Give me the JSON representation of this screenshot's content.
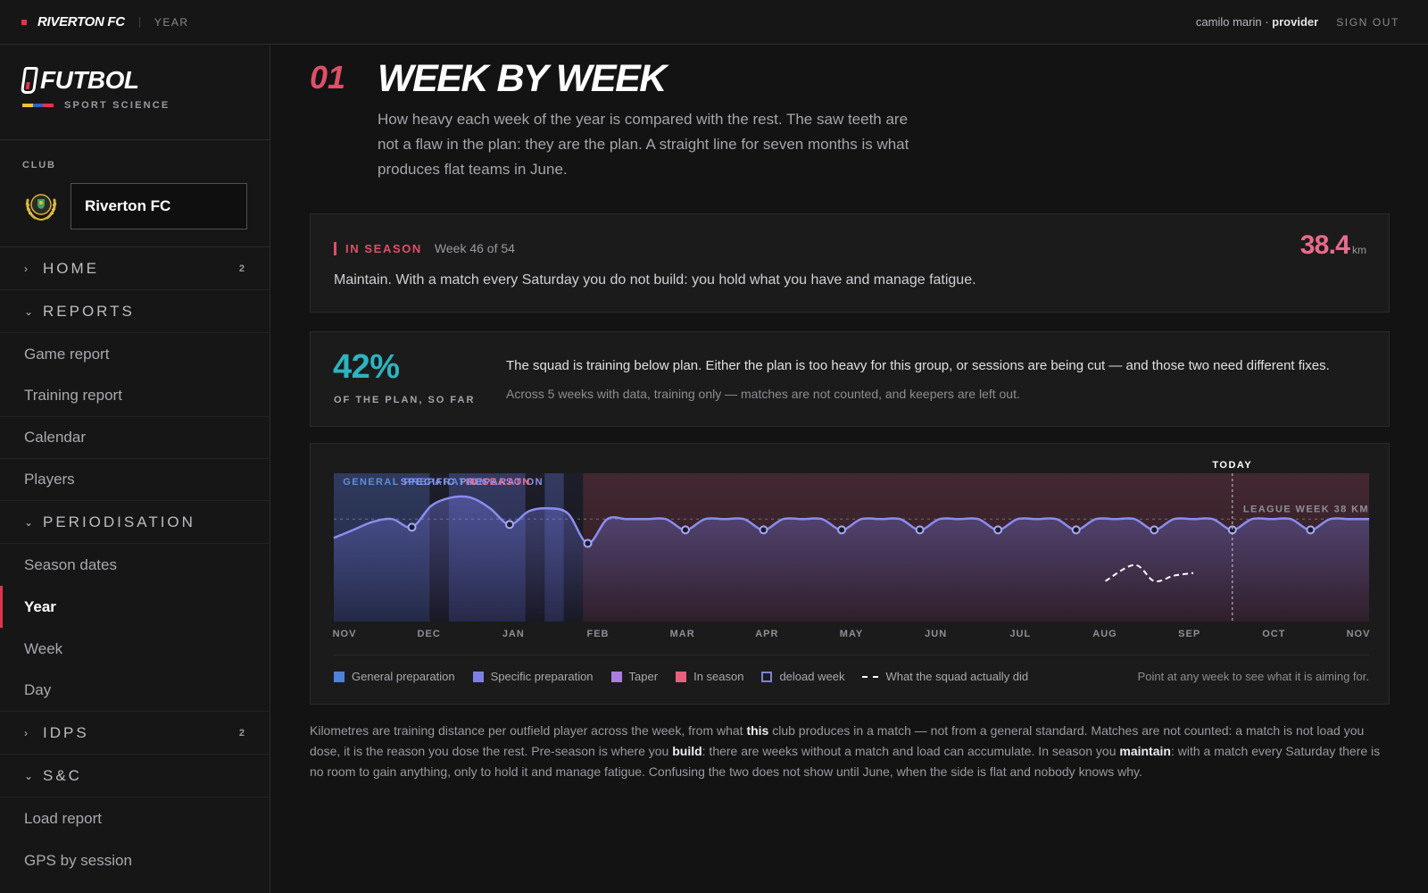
{
  "topbar": {
    "brand": "RIVERTON FC",
    "crumb": "YEAR",
    "user_name": "camilo marin ·",
    "user_role": "provider",
    "signout": "SIGN OUT"
  },
  "sidebar": {
    "logo_text": "FUTBOL",
    "logo_sub": "SPORT SCIENCE",
    "club_label": "CLUB",
    "club_value": "Riverton FC",
    "sections": {
      "home": {
        "label": "HOME",
        "count": "2"
      },
      "reports": {
        "label": "REPORTS",
        "items": [
          "Game report",
          "Training report",
          "Calendar",
          "Players"
        ]
      },
      "periodisation": {
        "label": "PERIODISATION",
        "items": [
          "Season dates",
          "Year",
          "Week",
          "Day"
        ]
      },
      "idps": {
        "label": "IDPS",
        "count": "2"
      },
      "sc": {
        "label": "S&C",
        "items": [
          "Load report",
          "GPS by session"
        ]
      }
    }
  },
  "main": {
    "section_number": "01",
    "title": "WEEK BY WEEK",
    "intro": "How heavy each week of the year is compared with the rest. The saw teeth are not a flaw in the plan: they are the plan. A straight line for seven months is what produces flat teams in June.",
    "season": {
      "tag": "IN SEASON",
      "week": "Week 46 of 54",
      "description": "Maintain. With a match every Saturday you do not build: you hold what you have and manage fatigue.",
      "km_value": "38.4",
      "km_unit": "km"
    },
    "plan": {
      "percent": "42%",
      "sub": "OF THE PLAN, SO FAR",
      "headline": "The squad is training below plan. Either the plan is too heavy for this group, or sessions are being cut — and those two need different fixes.",
      "note": "Across 5 weeks with data, training only — matches are not counted, and keepers are left out."
    },
    "legend": {
      "general": "General preparation",
      "specific": "Specific preparation",
      "taper": "Taper",
      "in_season": "In season",
      "deload": "deload week",
      "actual": "What the squad actually did",
      "hint": "Point at any week to see what it is aiming for."
    },
    "footnote": {
      "p1": "Kilometres are training distance per outfield player across the week, from what ",
      "b1": "this",
      "p2": " club produces in a match — not from a general standard. Matches are not counted: a match is not load you dose, it is the reason you dose the rest. Pre-season is where you ",
      "b2": "build",
      "p3": ": there are weeks without a match and load can accumulate. In season you ",
      "b3": "maintain",
      "p4": ": with a match every Saturday there is no room to gain anything, only to hold it and manage fatigue. Confusing the two does not show until June, when the side is flat and nobody knows why."
    }
  },
  "colors": {
    "accent": "#e0334d",
    "general": "#4f82d6",
    "specific": "#7d80e0",
    "taper": "#a97ee0",
    "in_season": "#e8607f",
    "teal": "#2bb5c0"
  },
  "chart_data": {
    "type": "line",
    "phase_labels": [
      "GENERAL PREPARATION",
      "SPECIFIC PREPARATION",
      "IN SEASON"
    ],
    "months": [
      "NOV",
      "DEC",
      "JAN",
      "FEB",
      "MAR",
      "APR",
      "MAY",
      "JUN",
      "JUL",
      "AUG",
      "SEP",
      "OCT",
      "NOV"
    ],
    "reference_line": {
      "label": "LEAGUE WEEK 38 KM",
      "value": 38
    },
    "today_label": "TODAY",
    "today_week": 46,
    "total_weeks": 54,
    "ylim": [
      0,
      55
    ],
    "phases": [
      {
        "name": "General preparation",
        "start_week": 0,
        "end_week": 5
      },
      {
        "name": "Taper",
        "start_week": 5,
        "end_week": 6
      },
      {
        "name": "Specific preparation",
        "start_week": 6,
        "end_week": 10
      },
      {
        "name": "Taper",
        "start_week": 10,
        "end_week": 11
      },
      {
        "name": "Specific preparation",
        "start_week": 11,
        "end_week": 12
      },
      {
        "name": "Taper",
        "start_week": 12,
        "end_week": 13
      },
      {
        "name": "In season",
        "start_week": 13,
        "end_week": 54
      }
    ],
    "series": [
      {
        "name": "Plan",
        "values": [
          31,
          34,
          37,
          38,
          35,
          43,
          46,
          46,
          42,
          36,
          41,
          42,
          40,
          29,
          38,
          38,
          38,
          38,
          34,
          38,
          38,
          38,
          34,
          38,
          38,
          38,
          34,
          38,
          38,
          38,
          34,
          38,
          38,
          38,
          34,
          38,
          38,
          38,
          34,
          38,
          38,
          38,
          34,
          38,
          38,
          38,
          34,
          38,
          38,
          38,
          34,
          38,
          38,
          38
        ]
      },
      {
        "name": "What the squad actually did",
        "points": [
          [
            39.5,
            15
          ],
          [
            41,
            21
          ],
          [
            42,
            15
          ],
          [
            43,
            17
          ],
          [
            44,
            18
          ]
        ]
      }
    ]
  }
}
